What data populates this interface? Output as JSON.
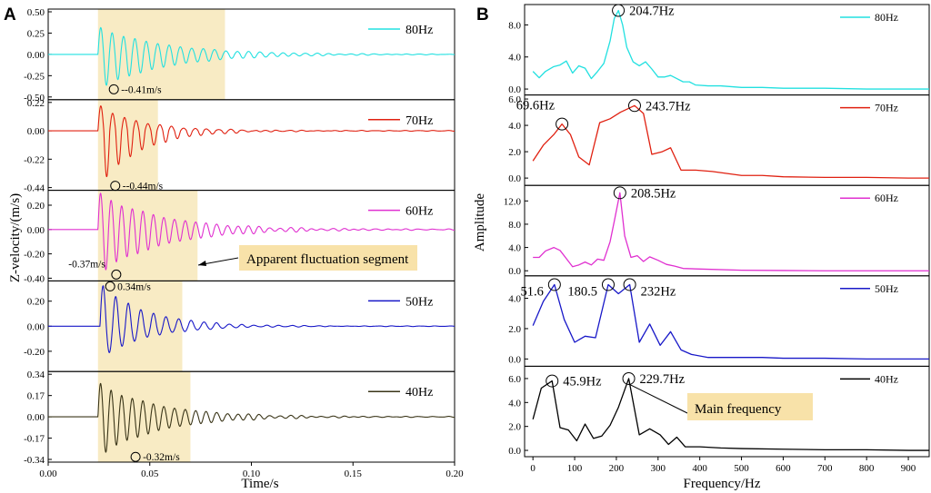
{
  "figure": {
    "panel_a_label": "A",
    "panel_b_label": "B"
  },
  "chart_data": [
    {
      "type": "line",
      "panel": "A",
      "title": "",
      "xlabel": "Time/s",
      "ylabel": "Z-velocity/(m/s)",
      "xlim": [
        0,
        0.2
      ],
      "xticks": [
        "0.00",
        "0.05",
        "0.10",
        "0.15",
        "0.20"
      ],
      "shaded_segment_label": "Apparent fluctuation segment",
      "series": [
        {
          "name": "80Hz",
          "color": "#22e0e0",
          "ylim": [
            -0.5,
            0.5
          ],
          "yticks": [
            "0.50",
            "0.25",
            "0.00",
            "-0.25",
            "-0.50"
          ],
          "onset": 0.0245,
          "period": 0.0056,
          "peak_pos": 0.32,
          "peak_neg": -0.41,
          "decay": 0.032,
          "tail": 0.006,
          "highlight_time": [
            0.0245,
            0.087
          ],
          "annotation": "--0.41m/s",
          "annotation_time": 0.0323,
          "annotation_value": -0.41
        },
        {
          "name": "70Hz",
          "color": "#e02010",
          "ylim": [
            -0.44,
            0.22
          ],
          "yticks": [
            "0.22",
            "0.00",
            "-0.22",
            "-0.44"
          ],
          "onset": 0.0245,
          "period": 0.0058,
          "peak_pos": 0.2,
          "peak_neg": -0.44,
          "decay": 0.02,
          "tail": 0.005,
          "highlight_time": [
            0.0245,
            0.054
          ],
          "annotation": "--0.44m/s",
          "annotation_time": 0.033,
          "annotation_value": -0.44
        },
        {
          "name": "60Hz",
          "color": "#e030d0",
          "ylim": [
            -0.4,
            0.3
          ],
          "yticks": [
            "0.20",
            "0.00",
            "-0.20",
            "-0.40"
          ],
          "onset": 0.0245,
          "period": 0.0052,
          "peak_pos": 0.3,
          "peak_neg": -0.37,
          "decay": 0.03,
          "tail": 0.008,
          "highlight_time": [
            0.0245,
            0.0735
          ],
          "annotation": "-0.37m/s",
          "annotation_time": 0.0335,
          "annotation_value": -0.37
        },
        {
          "name": "50Hz",
          "color": "#1818c8",
          "ylim": [
            -0.34,
            0.34
          ],
          "yticks": [
            "0.20",
            "0.00",
            "-0.20"
          ],
          "onset": 0.0255,
          "period": 0.0062,
          "peak_pos": 0.34,
          "peak_neg": -0.26,
          "decay": 0.022,
          "tail": 0.004,
          "highlight_time": [
            0.0245,
            0.066
          ],
          "annotation": "0.34m/s",
          "annotation_time": 0.0305,
          "annotation_value": 0.34
        },
        {
          "name": "40Hz",
          "color": "#3a3518",
          "ylim": [
            -0.34,
            0.34
          ],
          "yticks": [
            "0.34",
            "0.17",
            "0.00",
            "-0.17",
            "-0.34"
          ],
          "onset": 0.0245,
          "period": 0.0052,
          "peak_pos": 0.27,
          "peak_neg": -0.32,
          "decay": 0.028,
          "tail": 0.006,
          "highlight_time": [
            0.0245,
            0.07
          ],
          "annotation": "-0.32m/s",
          "annotation_time": 0.043,
          "annotation_value": -0.32
        }
      ]
    },
    {
      "type": "line",
      "panel": "B",
      "title": "",
      "xlabel": "Frequency/Hz",
      "ylabel": "Amplitude",
      "xlim": [
        -20,
        950
      ],
      "xticks": [
        0,
        100,
        200,
        300,
        400,
        500,
        600,
        700,
        800,
        900
      ],
      "callout": "Main frequency",
      "series": [
        {
          "name": "80Hz",
          "color": "#22e0e0",
          "ylim": [
            -0.4,
            10.2
          ],
          "yticks": [
            "0.0",
            "4.0",
            "8.0"
          ],
          "peaks": [
            {
              "label": "204.7Hz",
              "x": 204.7,
              "y": 9.8
            }
          ],
          "x": [
            0,
            15,
            30,
            50,
            65,
            80,
            95,
            110,
            125,
            140,
            155,
            170,
            185,
            195,
            205,
            215,
            225,
            240,
            255,
            270,
            285,
            300,
            315,
            330,
            345,
            360,
            375,
            390,
            420,
            450,
            500,
            550,
            600,
            650,
            700,
            800,
            900,
            950
          ],
          "values": [
            2.2,
            1.4,
            2.2,
            2.8,
            3.0,
            3.5,
            2.0,
            2.9,
            2.6,
            1.3,
            2.2,
            3.2,
            6.0,
            8.8,
            9.8,
            8.0,
            5.2,
            3.4,
            2.9,
            3.4,
            2.5,
            1.5,
            1.5,
            1.7,
            1.3,
            0.9,
            0.9,
            0.5,
            0.4,
            0.4,
            0.2,
            0.2,
            0.1,
            0.1,
            0.1,
            0.0,
            0.0,
            0.0
          ]
        },
        {
          "name": "70Hz",
          "color": "#e02010",
          "ylim": [
            -0.35,
            6.1
          ],
          "yticks": [
            "0.0",
            "2.0",
            "4.0",
            "6.0"
          ],
          "peaks": [
            {
              "label": "69.6Hz",
              "x": 69.6,
              "y": 4.1
            },
            {
              "label": "243.7Hz",
              "x": 243.7,
              "y": 5.5
            }
          ],
          "x": [
            0,
            25,
            50,
            69.6,
            90,
            110,
            135,
            160,
            185,
            210,
            243.7,
            265,
            285,
            310,
            330,
            355,
            390,
            430,
            500,
            550,
            600,
            700,
            800,
            900,
            950
          ],
          "values": [
            1.3,
            2.5,
            3.3,
            4.1,
            3.3,
            1.6,
            1.0,
            4.2,
            4.5,
            5.0,
            5.5,
            4.9,
            1.8,
            2.0,
            2.3,
            0.6,
            0.6,
            0.5,
            0.2,
            0.2,
            0.1,
            0.05,
            0.05,
            0.0,
            0.0
          ]
        },
        {
          "name": "60Hz",
          "color": "#e030d0",
          "ylim": [
            -0.4,
            14.2
          ],
          "yticks": [
            "0.0",
            "4.0",
            "8.0",
            "12.0"
          ],
          "peaks": [
            {
              "label": "208.5Hz",
              "x": 208.5,
              "y": 13.4
            }
          ],
          "x": [
            0,
            15,
            30,
            50,
            65,
            80,
            95,
            110,
            125,
            140,
            155,
            170,
            185,
            195,
            208.5,
            220,
            235,
            250,
            265,
            280,
            300,
            320,
            340,
            360,
            400,
            500,
            600,
            700,
            800,
            900,
            950
          ],
          "values": [
            2.3,
            2.3,
            3.4,
            4.0,
            3.5,
            2.1,
            0.7,
            1.0,
            1.5,
            1.0,
            2.0,
            1.8,
            5.0,
            8.5,
            13.4,
            6.0,
            2.3,
            2.6,
            1.6,
            2.4,
            1.8,
            1.1,
            0.8,
            0.4,
            0.3,
            0.1,
            0.05,
            0.0,
            0.0,
            0.0,
            0.0
          ]
        },
        {
          "name": "50Hz",
          "color": "#1818c8",
          "ylim": [
            -0.3,
            5.3
          ],
          "yticks": [
            "0.0",
            "2.0",
            "4.0"
          ],
          "peaks": [
            {
              "label": "51.6",
              "x": 51.6,
              "y": 4.9
            },
            {
              "label": "180.5",
              "x": 180.5,
              "y": 4.9
            },
            {
              "label": "232Hz",
              "x": 232,
              "y": 4.9
            }
          ],
          "x": [
            0,
            25,
            51.6,
            75,
            100,
            125,
            150,
            180.5,
            205,
            232,
            255,
            280,
            305,
            330,
            355,
            380,
            420,
            500,
            550,
            600,
            700,
            800,
            900,
            950
          ],
          "values": [
            2.2,
            3.8,
            4.9,
            2.6,
            1.1,
            1.5,
            1.4,
            4.9,
            4.3,
            4.9,
            1.1,
            2.3,
            0.9,
            1.8,
            0.6,
            0.3,
            0.1,
            0.1,
            0.1,
            0.05,
            0.05,
            0.0,
            0.0,
            0.0
          ]
        },
        {
          "name": "40Hz",
          "color": "#000000",
          "ylim": [
            -0.3,
            6.8
          ],
          "yticks": [
            "0.0",
            "2.0",
            "4.0",
            "6.0"
          ],
          "peaks": [
            {
              "label": "45.9Hz",
              "x": 45.9,
              "y": 5.8
            },
            {
              "label": "229.7Hz",
              "x": 229.7,
              "y": 6.0
            }
          ],
          "x": [
            0,
            20,
            45.9,
            65,
            85,
            105,
            125,
            145,
            165,
            185,
            205,
            229.7,
            255,
            280,
            305,
            325,
            345,
            365,
            400,
            450,
            500,
            600,
            700,
            800,
            900,
            950
          ],
          "values": [
            2.6,
            5.2,
            5.8,
            1.9,
            1.7,
            0.8,
            2.2,
            1.0,
            1.2,
            2.1,
            3.6,
            6.0,
            1.3,
            1.8,
            1.3,
            0.5,
            1.1,
            0.3,
            0.3,
            0.2,
            0.15,
            0.1,
            0.05,
            0.05,
            0.0,
            0.0
          ]
        }
      ]
    }
  ]
}
